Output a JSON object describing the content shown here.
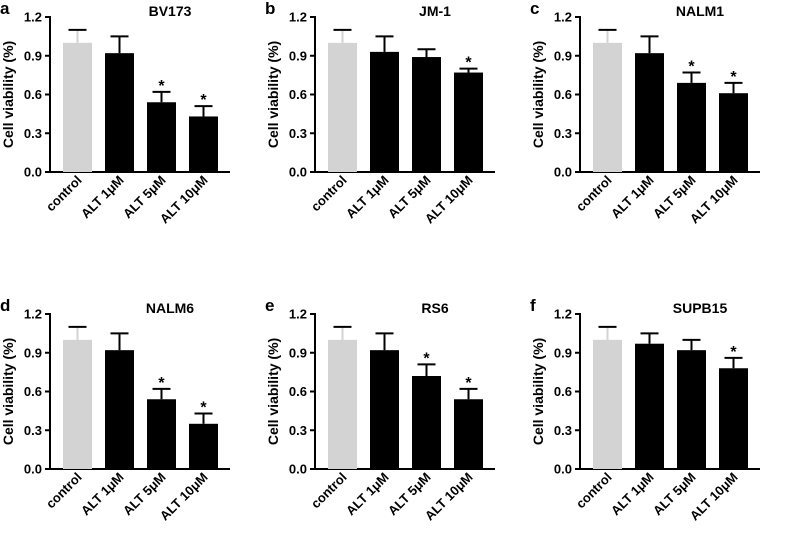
{
  "figure": {
    "colors": {
      "control": "#d3d3d3",
      "treatment": "#000000",
      "axis": "#000000"
    }
  },
  "chart_data": [
    {
      "type": "bar",
      "panel": "a",
      "title": "BV173",
      "ylabel": "Cell viability (%)",
      "ylim": [
        0,
        1.2
      ],
      "yticks": [
        "0.0",
        "0.3",
        "0.6",
        "0.9",
        "1.2"
      ],
      "categories": [
        "control",
        "ALT 1μM",
        "ALT 5μM",
        "ALT 10μM"
      ],
      "values": [
        1.0,
        0.92,
        0.54,
        0.43
      ],
      "errors": [
        0.1,
        0.13,
        0.08,
        0.08
      ],
      "significance": [
        "",
        "",
        "*",
        "*"
      ]
    },
    {
      "type": "bar",
      "panel": "b",
      "title": "JM-1",
      "ylabel": "Cell viability (%)",
      "ylim": [
        0,
        1.2
      ],
      "yticks": [
        "0.0",
        "0.3",
        "0.6",
        "0.9",
        "1.2"
      ],
      "categories": [
        "control",
        "ALT 1μM",
        "ALT 5μM",
        "ALT 10μM"
      ],
      "values": [
        1.0,
        0.93,
        0.89,
        0.77
      ],
      "errors": [
        0.1,
        0.12,
        0.06,
        0.03
      ],
      "significance": [
        "",
        "",
        "",
        "*"
      ]
    },
    {
      "type": "bar",
      "panel": "c",
      "title": "NALM1",
      "ylabel": "Cell viability (%)",
      "ylim": [
        0,
        1.2
      ],
      "yticks": [
        "0.0",
        "0.3",
        "0.6",
        "0.9",
        "1.2"
      ],
      "categories": [
        "control",
        "ALT 1μM",
        "ALT 5μM",
        "ALT 10μM"
      ],
      "values": [
        1.0,
        0.92,
        0.69,
        0.61
      ],
      "errors": [
        0.1,
        0.13,
        0.08,
        0.08
      ],
      "significance": [
        "",
        "",
        "*",
        "*"
      ]
    },
    {
      "type": "bar",
      "panel": "d",
      "title": "NALM6",
      "ylabel": "Cell viability (%)",
      "ylim": [
        0,
        1.2
      ],
      "yticks": [
        "0.0",
        "0.3",
        "0.6",
        "0.9",
        "1.2"
      ],
      "categories": [
        "control",
        "ALT 1μM",
        "ALT 5μM",
        "ALT 10μM"
      ],
      "values": [
        1.0,
        0.92,
        0.54,
        0.35
      ],
      "errors": [
        0.1,
        0.13,
        0.08,
        0.08
      ],
      "significance": [
        "",
        "",
        "*",
        "*"
      ]
    },
    {
      "type": "bar",
      "panel": "e",
      "title": "RS6",
      "ylabel": "Cell viability (%)",
      "ylim": [
        0,
        1.2
      ],
      "yticks": [
        "0.0",
        "0.3",
        "0.6",
        "0.9",
        "1.2"
      ],
      "categories": [
        "control",
        "ALT 1μM",
        "ALT 5μM",
        "ALT 10μM"
      ],
      "values": [
        1.0,
        0.92,
        0.72,
        0.54
      ],
      "errors": [
        0.1,
        0.13,
        0.09,
        0.08
      ],
      "significance": [
        "",
        "",
        "*",
        "*"
      ]
    },
    {
      "type": "bar",
      "panel": "f",
      "title": "SUPB15",
      "ylabel": "Cell viability (%)",
      "ylim": [
        0,
        1.2
      ],
      "yticks": [
        "0.0",
        "0.3",
        "0.6",
        "0.9",
        "1.2"
      ],
      "categories": [
        "control",
        "ALT 1μM",
        "ALT 5μM",
        "ALT 10μM"
      ],
      "values": [
        1.0,
        0.97,
        0.92,
        0.78
      ],
      "errors": [
        0.1,
        0.08,
        0.08,
        0.08
      ],
      "significance": [
        "",
        "",
        "",
        "*"
      ]
    }
  ]
}
